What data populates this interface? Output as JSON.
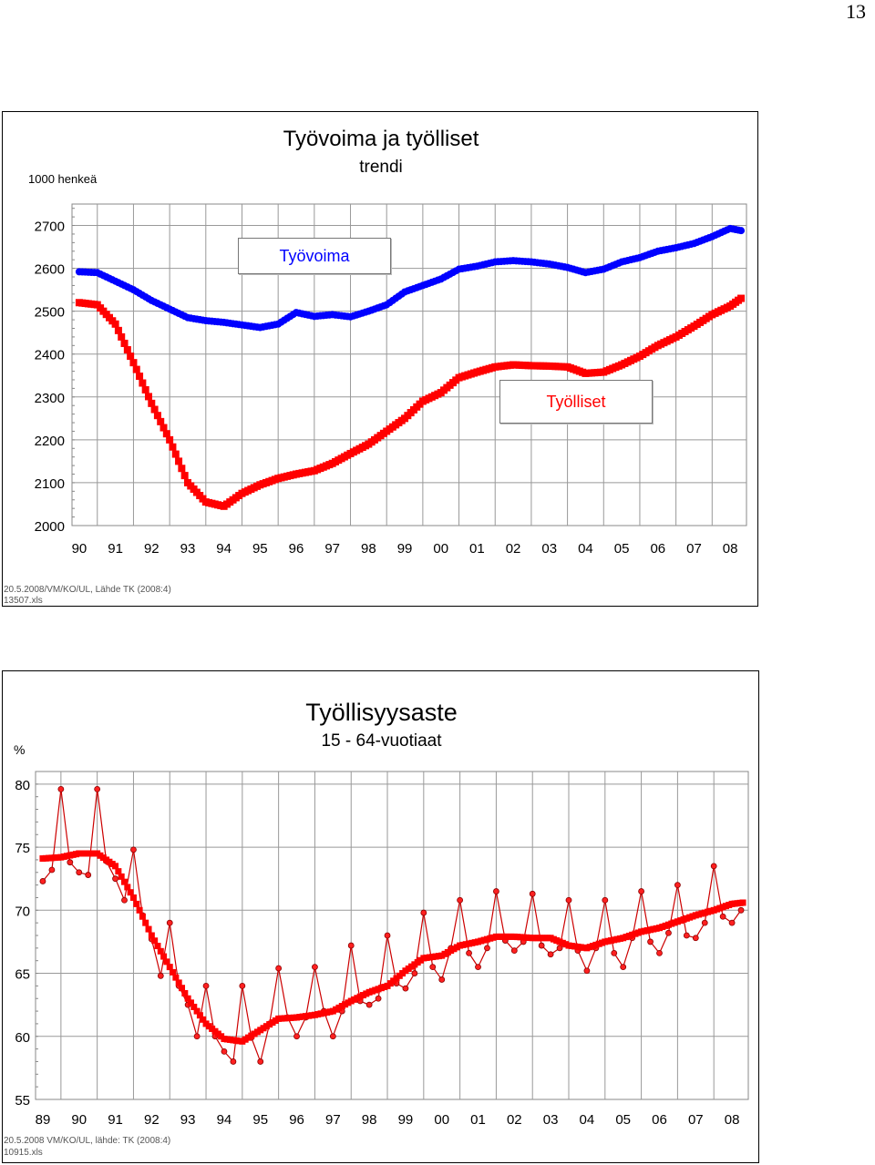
{
  "page_number": "13",
  "chart1": {
    "title": "Työvoima ja työlliset",
    "subtitle": "trendi",
    "unit_label": "1000 henkeä",
    "source_line1": "20.5.2008/VM/KO/UL, Lähde TK (2008:4)",
    "source_line2": "13507.xls",
    "legend_tyovoima": "Työvoima",
    "legend_tyolliset": "Työlliset",
    "colors": {
      "tyovoima": "#0000ff",
      "tyolliset": "#ff0000"
    }
  },
  "chart2": {
    "title": "Työllisyysaste",
    "subtitle": "15 - 64-vuotiaat",
    "unit_label": "%",
    "source_line1": "20.5.2008 VM/KO/UL, lähde: TK (2008:4)",
    "source_line2": "10915.xls",
    "colors": {
      "trend": "#ff0000",
      "monthly": "#cc0000"
    }
  },
  "chart_data": [
    {
      "type": "line",
      "title": "Työvoima ja työlliset",
      "subtitle": "trendi",
      "ylabel": "1000 henkeä",
      "ylim": [
        2000,
        2750
      ],
      "yticks": [
        2000,
        2100,
        2200,
        2300,
        2400,
        2500,
        2600,
        2700
      ],
      "categories": [
        "90",
        "91",
        "92",
        "93",
        "94",
        "95",
        "96",
        "97",
        "98",
        "99",
        "00",
        "01",
        "02",
        "03",
        "04",
        "05",
        "06",
        "07",
        "08"
      ],
      "x_range": [
        1990.0,
        2008.3
      ],
      "grid": true,
      "series": [
        {
          "name": "Työvoima",
          "x": [
            1990.0,
            1990.5,
            1991.0,
            1991.5,
            1992.0,
            1992.5,
            1993.0,
            1993.5,
            1994.0,
            1994.5,
            1995.0,
            1995.5,
            1996.0,
            1996.5,
            1997.0,
            1997.5,
            1998.0,
            1998.5,
            1999.0,
            1999.5,
            2000.0,
            2000.5,
            2001.0,
            2001.5,
            2002.0,
            2002.5,
            2003.0,
            2003.5,
            2004.0,
            2004.5,
            2005.0,
            2005.5,
            2006.0,
            2006.5,
            2007.0,
            2007.5,
            2008.0,
            2008.3
          ],
          "values": [
            2592,
            2590,
            2570,
            2550,
            2525,
            2505,
            2485,
            2478,
            2474,
            2468,
            2462,
            2470,
            2497,
            2488,
            2492,
            2487,
            2500,
            2515,
            2545,
            2560,
            2575,
            2598,
            2605,
            2615,
            2618,
            2615,
            2610,
            2602,
            2590,
            2598,
            2615,
            2625,
            2640,
            2648,
            2658,
            2674,
            2693,
            2688
          ]
        },
        {
          "name": "Työlliset",
          "x": [
            1990.0,
            1990.5,
            1991.0,
            1991.5,
            1992.0,
            1992.5,
            1993.0,
            1993.5,
            1994.0,
            1994.5,
            1995.0,
            1995.5,
            1996.0,
            1996.5,
            1997.0,
            1997.5,
            1998.0,
            1998.5,
            1999.0,
            1999.5,
            2000.0,
            2000.5,
            2001.0,
            2001.5,
            2002.0,
            2002.5,
            2003.0,
            2003.5,
            2004.0,
            2004.5,
            2005.0,
            2005.5,
            2006.0,
            2006.5,
            2007.0,
            2007.5,
            2008.0,
            2008.3
          ],
          "values": [
            2520,
            2515,
            2470,
            2380,
            2285,
            2200,
            2100,
            2055,
            2045,
            2075,
            2095,
            2110,
            2120,
            2128,
            2145,
            2168,
            2190,
            2220,
            2250,
            2290,
            2310,
            2345,
            2358,
            2370,
            2375,
            2373,
            2372,
            2370,
            2355,
            2358,
            2375,
            2395,
            2420,
            2440,
            2465,
            2492,
            2512,
            2530
          ]
        }
      ]
    },
    {
      "type": "line",
      "title": "Työllisyysaste",
      "subtitle": "15 - 64-vuotiaat",
      "ylabel": "%",
      "ylim": [
        55,
        81
      ],
      "yticks": [
        55,
        60,
        65,
        70,
        75,
        80
      ],
      "categories": [
        "89",
        "90",
        "91",
        "92",
        "93",
        "94",
        "95",
        "96",
        "97",
        "98",
        "99",
        "00",
        "01",
        "02",
        "03",
        "04",
        "05",
        "06",
        "07",
        "08"
      ],
      "x_range": [
        1989.0,
        2008.3
      ],
      "grid": true,
      "series": [
        {
          "name": "",
          "x": [
            1989.0,
            1989.5,
            1990.0,
            1990.5,
            1991.0,
            1991.5,
            1992.0,
            1992.5,
            1993.0,
            1993.5,
            1994.0,
            1994.5,
            1995.0,
            1995.5,
            1996.0,
            1996.5,
            1997.0,
            1997.5,
            1998.0,
            1998.5,
            1999.0,
            1999.5,
            2000.0,
            2000.5,
            2001.0,
            2001.5,
            2002.0,
            2002.5,
            2003.0,
            2003.5,
            2004.0,
            2004.5,
            2005.0,
            2005.5,
            2006.0,
            2006.5,
            2007.0,
            2007.5,
            2008.0,
            2008.3
          ],
          "values": [
            74.1,
            74.2,
            74.5,
            74.5,
            73.5,
            71.0,
            68.0,
            65.5,
            63.0,
            61.0,
            59.8,
            59.6,
            60.5,
            61.4,
            61.5,
            61.7,
            62.0,
            62.8,
            63.5,
            64.0,
            65.2,
            66.2,
            66.4,
            67.2,
            67.5,
            67.9,
            67.9,
            67.8,
            67.8,
            67.2,
            67.0,
            67.5,
            67.8,
            68.3,
            68.6,
            69.1,
            69.6,
            70.0,
            70.5,
            70.6
          ]
        },
        {
          "name": "",
          "x": [
            1989.0,
            1989.25,
            1989.5,
            1989.75,
            1990.0,
            1990.25,
            1990.5,
            1990.75,
            1991.0,
            1991.25,
            1991.5,
            1991.75,
            1992.0,
            1992.25,
            1992.5,
            1992.75,
            1993.0,
            1993.25,
            1993.5,
            1993.75,
            1994.0,
            1994.25,
            1994.5,
            1994.75,
            1995.0,
            1995.25,
            1995.5,
            1995.75,
            1996.0,
            1996.25,
            1996.5,
            1996.75,
            1997.0,
            1997.25,
            1997.5,
            1997.75,
            1998.0,
            1998.25,
            1998.5,
            1998.75,
            1999.0,
            1999.25,
            1999.5,
            1999.75,
            2000.0,
            2000.25,
            2000.5,
            2000.75,
            2001.0,
            2001.25,
            2001.5,
            2001.75,
            2002.0,
            2002.25,
            2002.5,
            2002.75,
            2003.0,
            2003.25,
            2003.5,
            2003.75,
            2004.0,
            2004.25,
            2004.5,
            2004.75,
            2005.0,
            2005.25,
            2005.5,
            2005.75,
            2006.0,
            2006.25,
            2006.5,
            2006.75,
            2007.0,
            2007.25,
            2007.5,
            2007.75,
            2008.0,
            2008.25
          ],
          "values": [
            72.3,
            73.2,
            79.6,
            73.8,
            73.0,
            72.8,
            79.6,
            73.9,
            72.5,
            70.8,
            74.8,
            69.6,
            67.7,
            64.8,
            69.0,
            64.0,
            62.5,
            60.0,
            64.0,
            60.0,
            58.8,
            58.0,
            64.0,
            59.9,
            58.0,
            61.0,
            65.4,
            61.5,
            60.0,
            61.5,
            65.5,
            62.0,
            60.0,
            62.0,
            67.2,
            62.8,
            62.5,
            63.0,
            68.0,
            64.2,
            63.8,
            65.0,
            69.8,
            65.5,
            64.5,
            67.0,
            70.8,
            66.6,
            65.5,
            67.0,
            71.5,
            67.6,
            66.8,
            67.5,
            71.3,
            67.2,
            66.5,
            67.0,
            70.8,
            66.8,
            65.2,
            67.0,
            70.8,
            66.6,
            65.5,
            67.8,
            71.5,
            67.5,
            66.6,
            68.2,
            72.0,
            68.0,
            67.8,
            69.0,
            73.5,
            69.5,
            69.0,
            70.0
          ]
        }
      ]
    }
  ]
}
